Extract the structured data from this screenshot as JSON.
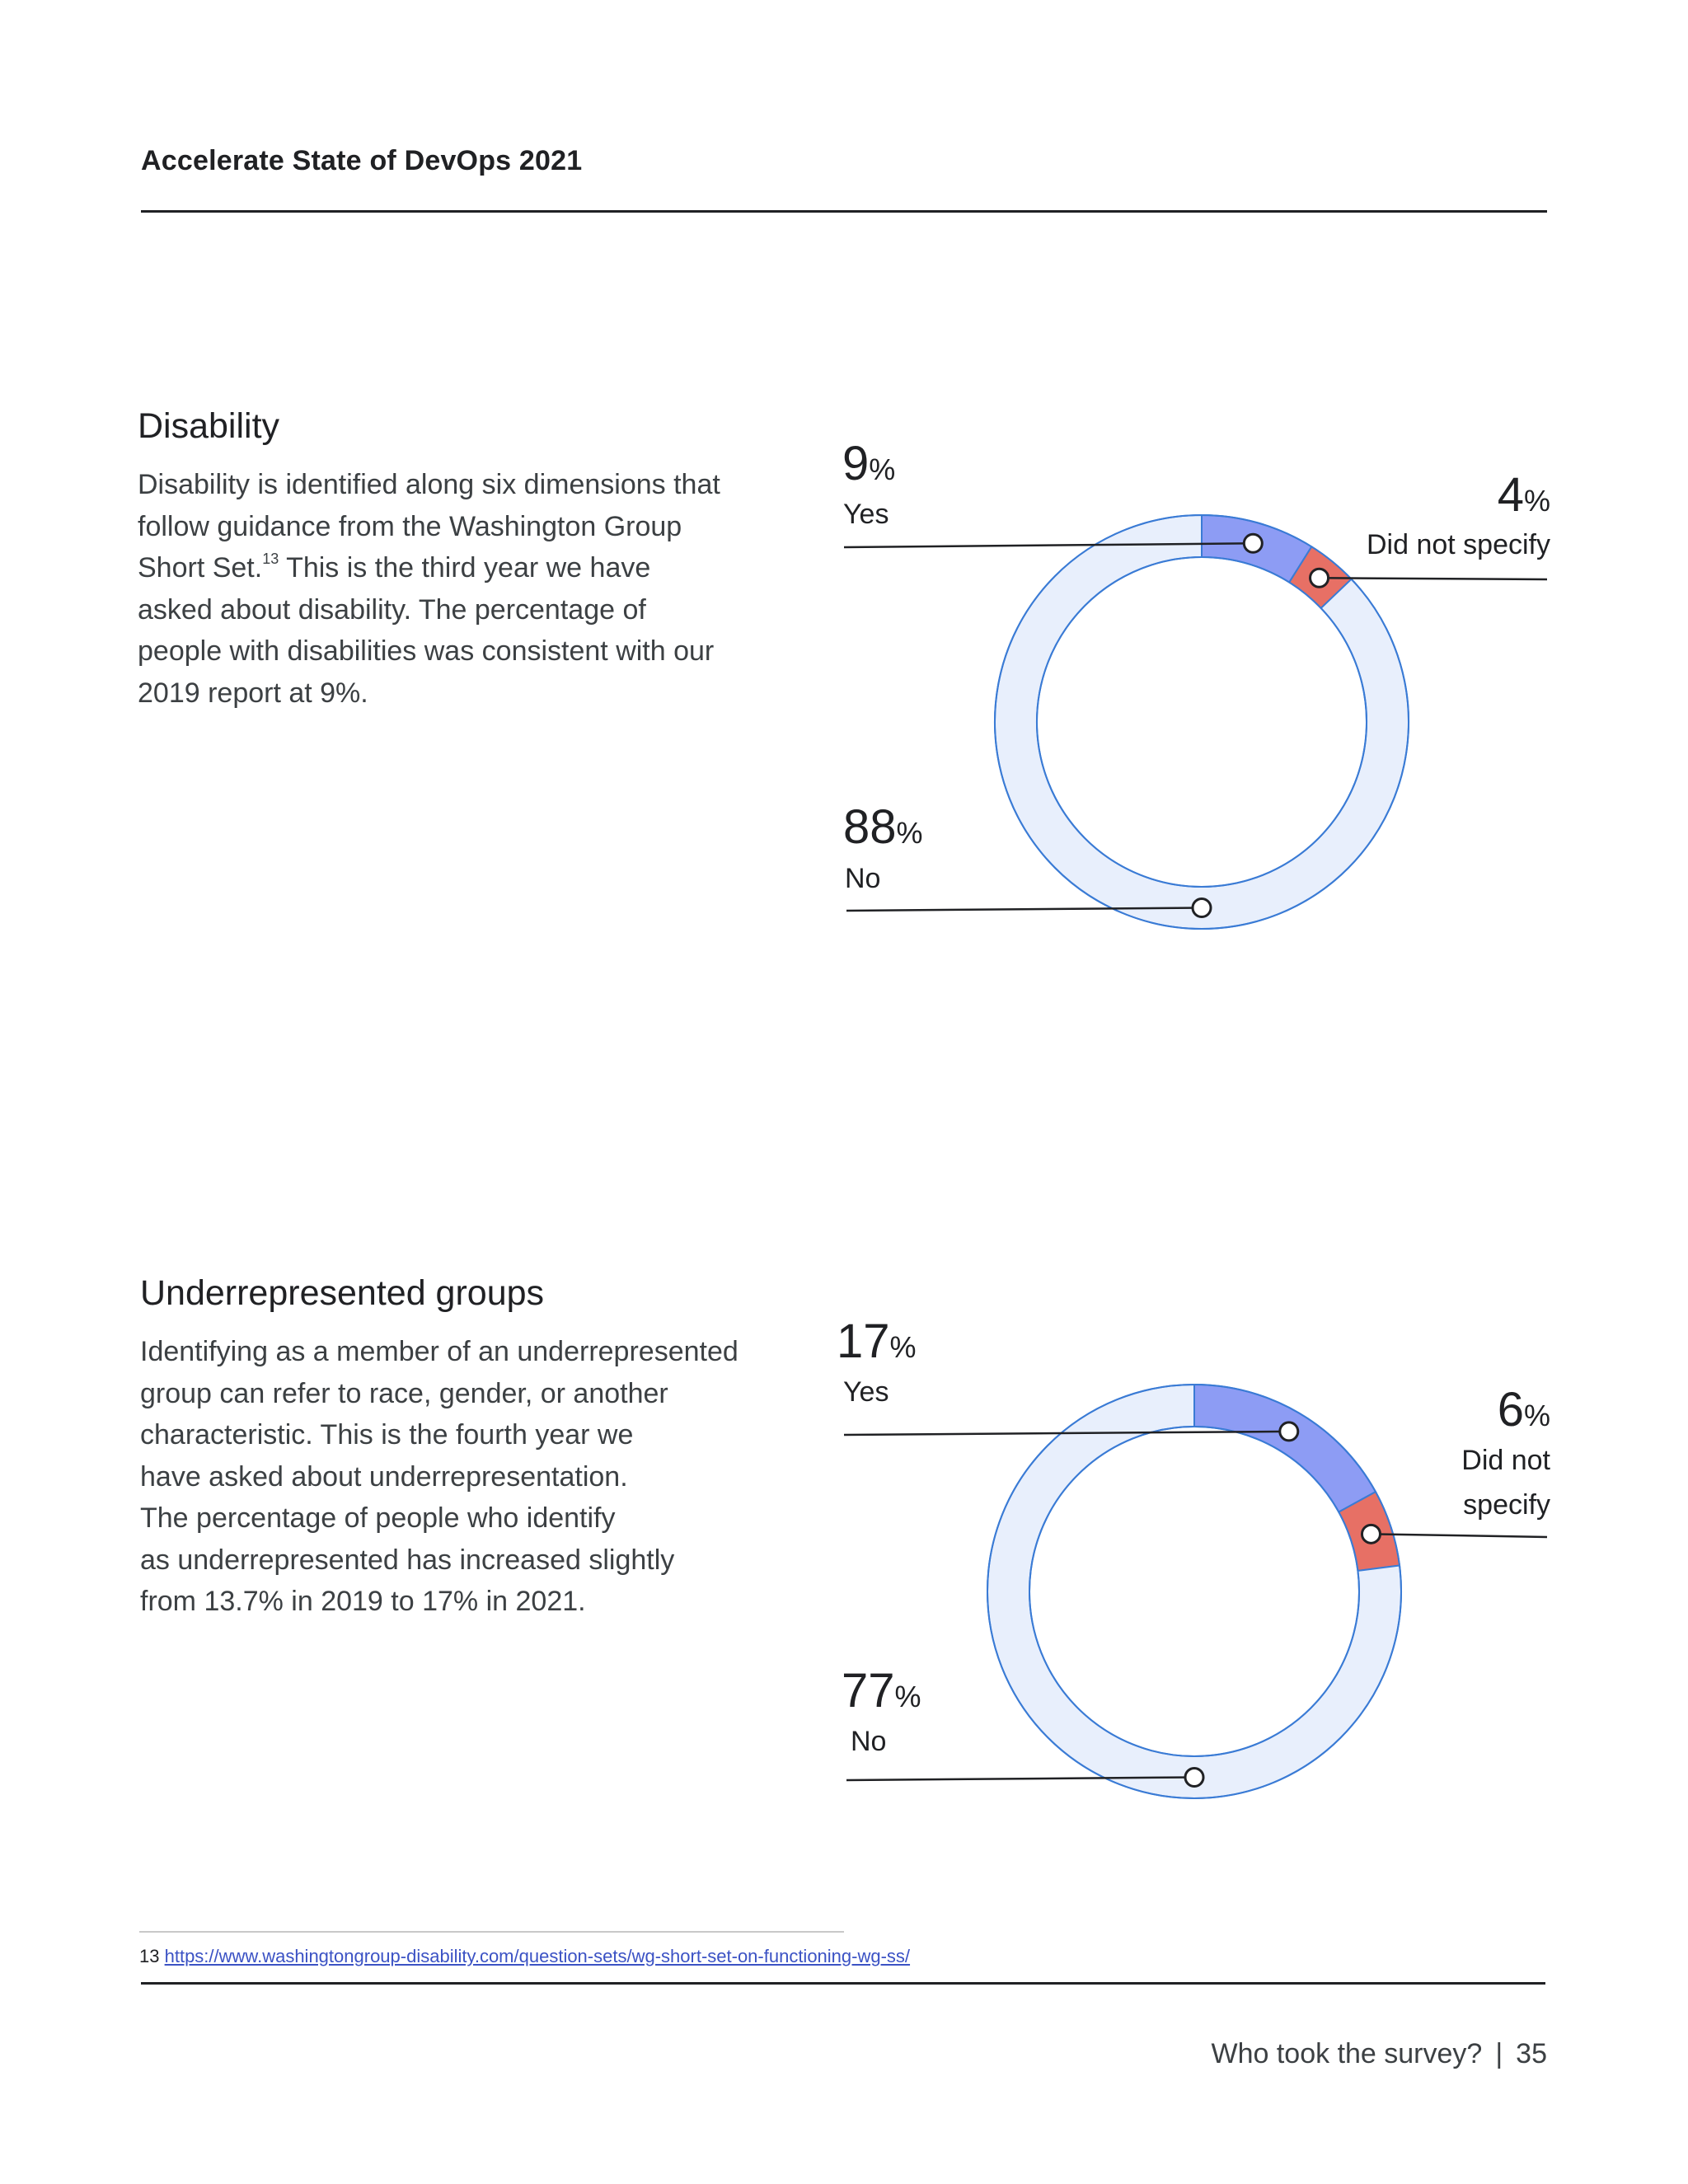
{
  "header": {
    "title": "Accelerate State of DevOps 2021"
  },
  "disability": {
    "title": "Disability",
    "body_before_sup": "Disability is identified along six dimensions that follow guidance from the Washington Group Short Set.",
    "footnote_ref": "13",
    "body_after_sup": " This is the third year we have asked about disability. The percentage of people with disabilities was consistent with our 2019 report at 9%.",
    "chart_data": {
      "type": "pie",
      "categories": [
        "Yes",
        "Did not specify",
        "No"
      ],
      "values": [
        9,
        4,
        88
      ],
      "unit": "%"
    },
    "labels": {
      "yes_value": "9",
      "yes_label": "Yes",
      "dns_value": "4",
      "dns_label": "Did not specify",
      "no_value": "88",
      "no_label": "No",
      "percent_sign": "%"
    }
  },
  "underrepresented": {
    "title": "Underrepresented groups",
    "body": [
      "Identifying as a member of an underrepresented",
      "group can refer to race, gender, or another",
      "characteristic. This is the fourth year we",
      "have asked about underrepresentation.",
      "The percentage of people who identify",
      "as underrepresented has increased slightly",
      "from 13.7% in 2019 to 17% in 2021."
    ],
    "chart_data": {
      "type": "pie",
      "categories": [
        "Yes",
        "Did not specify",
        "No"
      ],
      "values": [
        17,
        6,
        77
      ],
      "unit": "%"
    },
    "labels": {
      "yes_value": "17",
      "yes_label": "Yes",
      "dns_value": "6",
      "dns_label_line1": "Did not",
      "dns_label_line2": "specify",
      "no_value": "77",
      "no_label": "No",
      "percent_sign": "%"
    }
  },
  "footnote": {
    "number": "13",
    "url": "https://www.washingtongroup-disability.com/question-sets/wg-short-set-on-functioning-wg-ss/"
  },
  "footer": {
    "section": "Who took the survey?",
    "separator": "|",
    "page_number": "35"
  },
  "colors": {
    "yes": "#8d9cf4",
    "did_not_specify": "#e77065",
    "no": "#e8effc",
    "outline": "#3a7bd5"
  }
}
